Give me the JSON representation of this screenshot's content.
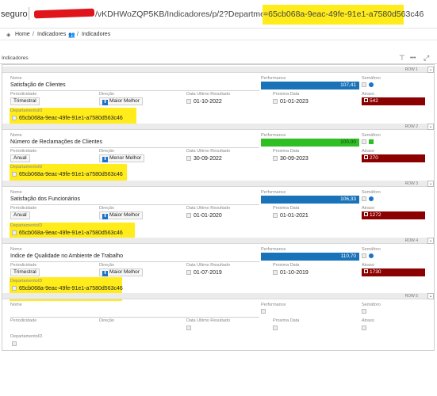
{
  "url": {
    "secure_label": "seguro",
    "path": "/vKDHWoZQP5KB/Indicadores/p/2?DepartmentUUID_",
    "highlighted": "=65cb068a-9eac-49fe-91e1-a7580d563c46"
  },
  "breadcrumb": {
    "home": "Home",
    "sep1": "/",
    "item1": "Indicadores",
    "sep2": "/",
    "item2": "Indicadores"
  },
  "panel": {
    "title": "Indicadores",
    "tools": [
      "⊤",
      "•••",
      "⤢"
    ]
  },
  "labels": {
    "nome": "Nome",
    "performance": "Performance",
    "semaforo": "Semáforo",
    "periodicidade": "Periodicidade",
    "direcao": "Direção",
    "data_ultimo": "Data Ultimo Resultado",
    "proxima": "Proxima Data",
    "atraso": "Atraso",
    "departamento": "DepartamentoID"
  },
  "rows": [
    {
      "row_label": "ROW 1",
      "nome": "Satisfação de Clientes",
      "performance": "107,41",
      "performance_color": "#1a73b8",
      "semaforo_color": "#1a73c9",
      "semaforo_shape": "dot",
      "periodicidade": "Trimestral",
      "direcao": "Maior Melhor",
      "direcao_arrow": "⬆",
      "data_ultimo": "01-10-2022",
      "proxima": "01-01-2023",
      "atraso": "542",
      "departamento": "65cb068a-9eac-49fe-91e1-a7580d563c46"
    },
    {
      "row_label": "ROW 2",
      "nome": "Número de Reclamações de Clientes",
      "performance": "100,00",
      "performance_color": "#2fbf24",
      "semaforo_color": "#2fbf24",
      "semaforo_shape": "square",
      "periodicidade": "Anual",
      "direcao": "Menor Melhor",
      "direcao_arrow": "⬇",
      "data_ultimo": "30-09-2022",
      "proxima": "30-09-2023",
      "atraso": "270",
      "departamento": "65cb068a-9eac-49fe-91e1-a7580d563c46"
    },
    {
      "row_label": "ROW 3",
      "nome": "Satisfação dos Funcionários",
      "performance": "106,33",
      "performance_color": "#1a73b8",
      "semaforo_color": "#1a73c9",
      "semaforo_shape": "dot",
      "periodicidade": "Anual",
      "direcao": "Maior Melhor",
      "direcao_arrow": "⬆",
      "data_ultimo": "01-01-2020",
      "proxima": "01-01-2021",
      "atraso": "1272",
      "departamento": "65cb068a-9eac-49fe-91e1-a7580d563c46"
    },
    {
      "row_label": "ROW 4",
      "nome": "Indice de Qualidade no Ambiente de Trabalho",
      "performance": "110,70",
      "performance_color": "#1a73b8",
      "semaforo_color": "#1a73c9",
      "semaforo_shape": "dot",
      "periodicidade": "Trimestral",
      "direcao": "Maior Melhor",
      "direcao_arrow": "⬆",
      "data_ultimo": "01-07-2019",
      "proxima": "01-10-2019",
      "atraso": "1730",
      "departamento": "65cb068a-9eac-49fe-91e1-a7580d563c46"
    },
    {
      "row_label": "ROW 5"
    }
  ],
  "colors": {
    "highlight": "#ffec1a",
    "atraso_bg": "#8b0000",
    "redaction": "#e0141b"
  }
}
